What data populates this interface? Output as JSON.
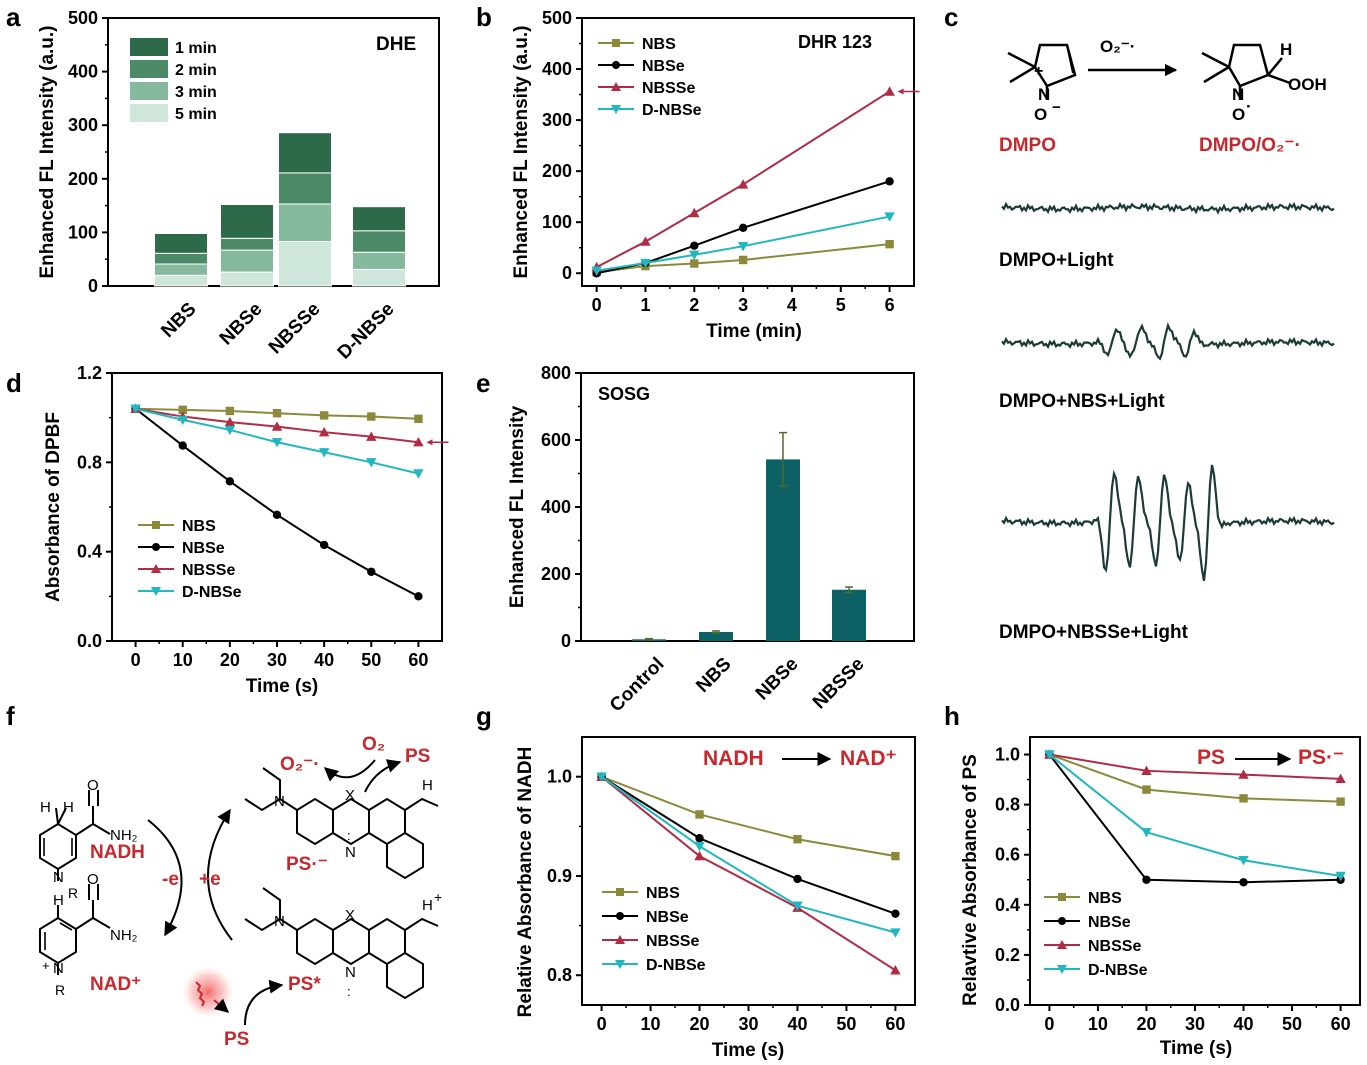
{
  "panels": {
    "a": {
      "letter": "a",
      "ylabel": "Enhanced FL Intensity (a.u.)",
      "annotation": "DHE",
      "yticks": [
        "0",
        "100",
        "200",
        "300",
        "400",
        "500"
      ],
      "legend": [
        "1 min",
        "2 min",
        "3 min",
        "5 min"
      ]
    },
    "b": {
      "letter": "b",
      "ylabel": "Enhanced FL Intensity (a.u.)",
      "xlabel": "Time (min)",
      "annotation": "DHR 123",
      "yticks": [
        "0",
        "100",
        "200",
        "300",
        "400",
        "500"
      ],
      "xticks": [
        "0",
        "1",
        "2",
        "3",
        "4",
        "5",
        "6"
      ]
    },
    "c": {
      "letter": "c",
      "reagent": "O₂⁻·",
      "left_label": "DMPO",
      "right_label": "DMPO/O₂⁻·",
      "h_label": "H",
      "ooh_label": "OOH",
      "n_label": "N",
      "o_label": "O",
      "plus_label": "+",
      "minus_label": "−",
      "dot_label": "·",
      "traces": [
        "DMPO+Light",
        "DMPO+NBS+Light",
        "DMPO+NBSSe+Light"
      ]
    },
    "d": {
      "letter": "d",
      "ylabel": "Absorbance of DPBF",
      "xlabel": "Time (s)",
      "yticks": [
        "0.0",
        "0.4",
        "0.8",
        "1.2"
      ],
      "xticks": [
        "0",
        "10",
        "20",
        "30",
        "40",
        "50",
        "60"
      ]
    },
    "e": {
      "letter": "e",
      "ylabel": "Enhanced FL Intensity",
      "annotation": "SOSG",
      "yticks": [
        "0",
        "200",
        "400",
        "600",
        "800"
      ]
    },
    "f": {
      "letter": "f",
      "nadh": "NADH",
      "nad": "NAD⁺",
      "minus_e": "-e",
      "plus_e": "+e",
      "ps": "PS",
      "ps_star": "PS*",
      "ps_radical": "PS·⁻",
      "o2": "O₂",
      "o2_radical": "O₂⁻·",
      "ps_top": "PS",
      "atoms": {
        "h": "H",
        "nh2": "NH₂",
        "o": "O",
        "n": "N",
        "r": "R",
        "x": "X",
        "nh": "H",
        "plus": "+",
        "colon": ":"
      }
    },
    "g": {
      "letter": "g",
      "ylabel": "Relative Absorbance of NADH",
      "xlabel": "Time (s)",
      "reaction_left": "NADH",
      "reaction_right": "NAD⁺",
      "yticks": [
        "0.8",
        "0.9",
        "1.0"
      ],
      "xticks": [
        "0",
        "10",
        "20",
        "30",
        "40",
        "50",
        "60"
      ]
    },
    "h": {
      "letter": "h",
      "ylabel": "Relavtive Absorbance of PS",
      "xlabel": "Time (s)",
      "reaction_left": "PS",
      "reaction_right": "PS·⁻",
      "yticks": [
        "0.0",
        "0.2",
        "0.4",
        "0.6",
        "0.8",
        "1.0"
      ],
      "xticks": [
        "0",
        "10",
        "20",
        "30",
        "40",
        "50",
        "60"
      ]
    }
  },
  "colors": {
    "NBS": "#8b8a3b",
    "NBSe": "#000000",
    "NBSSe": "#b22b45",
    "D-NBSe": "#20b7c0",
    "bar_teal": "#0d6064",
    "stack": [
      "#2c6a4a",
      "#4b8a67",
      "#85b99e",
      "#cfe6da"
    ],
    "red_text": "#c8282d",
    "epr_trace": "#1c3a37"
  },
  "chart_data": [
    {
      "panel": "a",
      "type": "bar",
      "stacked": true,
      "title": "DHE",
      "ylabel": "Enhanced FL Intensity (a.u.)",
      "ylim": [
        0,
        500
      ],
      "categories": [
        "NBS",
        "NBSe",
        "NBSSe",
        "D-NBSe"
      ],
      "series": [
        {
          "name": "1 min",
          "values": [
            37,
            63,
            75,
            45
          ]
        },
        {
          "name": "2 min",
          "values": [
            20,
            22,
            58,
            40
          ]
        },
        {
          "name": "3 min",
          "values": [
            21,
            41,
            70,
            32
          ]
        },
        {
          "name": "5 min",
          "values": [
            20,
            26,
            83,
            31
          ]
        }
      ],
      "legend_position": "top-left"
    },
    {
      "panel": "b",
      "type": "line",
      "title": "DHR 123",
      "xlabel": "Time (min)",
      "ylabel": "Enhanced FL Intensity (a.u.)",
      "xlim": [
        -0.3,
        6.5
      ],
      "ylim": [
        -25,
        500
      ],
      "x": [
        0,
        1,
        2,
        3,
        6
      ],
      "series": [
        {
          "name": "NBS",
          "marker": "square",
          "values": [
            2,
            14,
            19,
            26,
            57
          ]
        },
        {
          "name": "NBSe",
          "marker": "circle",
          "values": [
            0,
            20,
            54,
            89,
            180
          ]
        },
        {
          "name": "NBSSe",
          "marker": "triangle-up",
          "values": [
            12,
            62,
            118,
            174,
            356
          ]
        },
        {
          "name": "D-NBSe",
          "marker": "triangle-down",
          "values": [
            5,
            20,
            36,
            53,
            111
          ]
        }
      ],
      "arrow_series": "NBSSe",
      "legend_position": "top-left"
    },
    {
      "panel": "d",
      "type": "line",
      "xlabel": "Time (s)",
      "ylabel": "Absorbance of DPBF",
      "xlim": [
        -5,
        65
      ],
      "ylim": [
        0,
        1.2
      ],
      "x": [
        0,
        10,
        20,
        30,
        40,
        50,
        60
      ],
      "series": [
        {
          "name": "NBS",
          "marker": "square",
          "values": [
            1.04,
            1.035,
            1.03,
            1.02,
            1.01,
            1.005,
            0.995
          ]
        },
        {
          "name": "NBSe",
          "marker": "circle",
          "values": [
            1.04,
            0.875,
            0.715,
            0.565,
            0.43,
            0.31,
            0.2
          ]
        },
        {
          "name": "NBSSe",
          "marker": "triangle-up",
          "values": [
            1.04,
            1.005,
            0.98,
            0.96,
            0.935,
            0.915,
            0.89
          ]
        },
        {
          "name": "D-NBSe",
          "marker": "triangle-down",
          "values": [
            1.04,
            0.99,
            0.945,
            0.89,
            0.845,
            0.8,
            0.75
          ]
        }
      ],
      "arrow_series": "NBSSe",
      "legend_position": "bottom-left"
    },
    {
      "panel": "e",
      "type": "bar",
      "title": "SOSG",
      "ylabel": "Enhanced FL Intensity",
      "ylim": [
        0,
        800
      ],
      "categories": [
        "Control",
        "NBS",
        "NBSe",
        "NBSSe"
      ],
      "values": [
        5,
        27,
        542,
        153
      ],
      "errors": [
        2,
        3,
        80,
        8
      ]
    },
    {
      "panel": "g",
      "type": "line",
      "xlabel": "Time (s)",
      "ylabel": "Relative Absorbance of NADH",
      "xlim": [
        -4,
        64
      ],
      "ylim": [
        0.77,
        1.04
      ],
      "x": [
        0,
        20,
        40,
        60
      ],
      "series": [
        {
          "name": "NBS",
          "marker": "square",
          "values": [
            1.0,
            0.962,
            0.937,
            0.92
          ]
        },
        {
          "name": "NBSe",
          "marker": "circle",
          "values": [
            1.0,
            0.938,
            0.897,
            0.862
          ]
        },
        {
          "name": "NBSSe",
          "marker": "triangle-up",
          "values": [
            1.0,
            0.92,
            0.868,
            0.805
          ]
        },
        {
          "name": "D-NBSe",
          "marker": "triangle-down",
          "values": [
            1.0,
            0.93,
            0.87,
            0.843
          ]
        }
      ],
      "legend_position": "bottom-left"
    },
    {
      "panel": "h",
      "type": "line",
      "xlabel": "Time (s)",
      "ylabel": "Relavtive Absorbance of PS",
      "xlim": [
        -4,
        64
      ],
      "ylim": [
        0,
        1.07
      ],
      "x": [
        0,
        20,
        40,
        60
      ],
      "series": [
        {
          "name": "NBS",
          "marker": "square",
          "values": [
            1.0,
            0.86,
            0.825,
            0.812
          ]
        },
        {
          "name": "NBSe",
          "marker": "circle",
          "values": [
            1.0,
            0.5,
            0.49,
            0.5
          ]
        },
        {
          "name": "NBSSe",
          "marker": "triangle-up",
          "values": [
            1.0,
            0.935,
            0.92,
            0.903
          ]
        },
        {
          "name": "D-NBSe",
          "marker": "triangle-down",
          "values": [
            1.0,
            0.69,
            0.578,
            0.515
          ]
        }
      ],
      "legend_position": "bottom-left"
    }
  ]
}
